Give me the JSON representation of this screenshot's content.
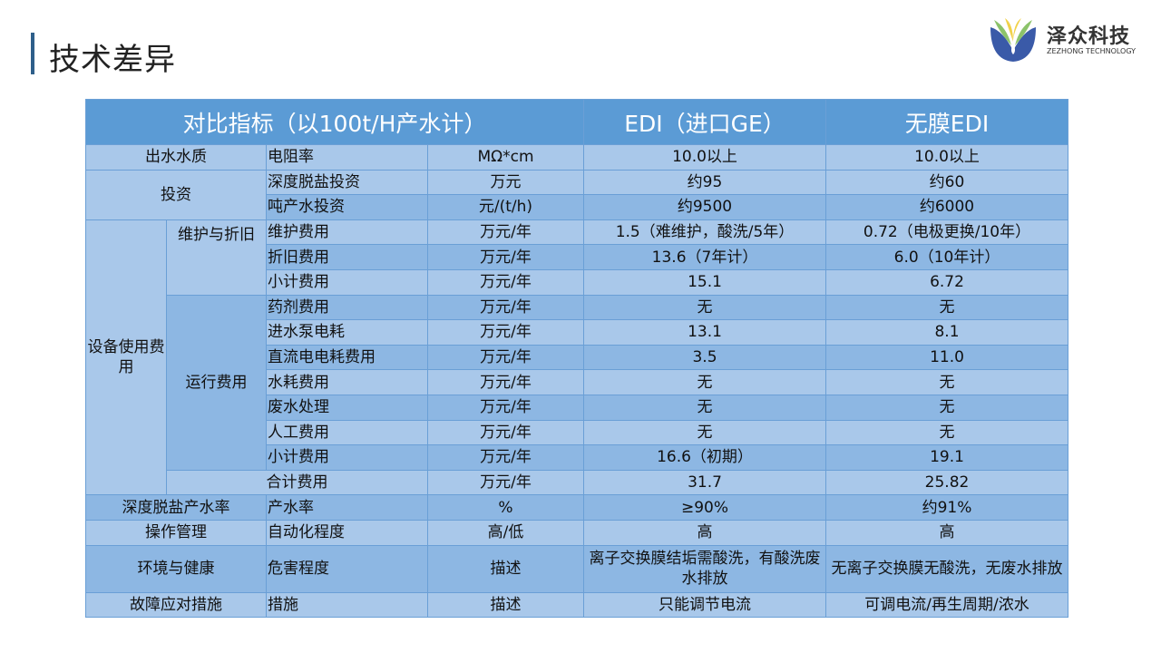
{
  "title": "技术差异",
  "logo": {
    "cn": "泽众科技",
    "en": "ZEZHONG TECHNOLOGY"
  },
  "colors": {
    "header": "#5b9bd5",
    "row_light": "#a9c8ea",
    "row_dark": "#8db7e3",
    "accent_bar": "#2e5f8a"
  },
  "header": {
    "col1": "对比指标（以100t/H产水计）",
    "col2": "EDI（进口GE）",
    "col3": "无膜EDI"
  },
  "groups": {
    "water": "出水水质",
    "invest": "投资",
    "equip": "设备使用费用",
    "maint": "维护与折旧",
    "run": "运行费用",
    "rate": "深度脱盐产水率",
    "ops": "操作管理",
    "env": "环境与健康",
    "fault": "故障应对措施"
  },
  "rows": [
    {
      "item": "电阻率",
      "unit": "MΩ*cm",
      "edi": "10.0以上",
      "nm": "10.0以上"
    },
    {
      "item": "深度脱盐投资",
      "unit": "万元",
      "edi": "约95",
      "nm": "约60"
    },
    {
      "item": "吨产水投资",
      "unit": "元/(t/h)",
      "edi": "约9500",
      "nm": "约6000"
    },
    {
      "item": "维护费用",
      "unit": "万元/年",
      "edi": "1.5（难维护，酸洗/5年）",
      "nm": "0.72（电极更换/10年）"
    },
    {
      "item": "折旧费用",
      "unit": "万元/年",
      "edi": "13.6（7年计）",
      "nm": "6.0（10年计）"
    },
    {
      "item": "小计费用",
      "unit": "万元/年",
      "edi": "15.1",
      "nm": "6.72"
    },
    {
      "item": "药剂费用",
      "unit": "万元/年",
      "edi": "无",
      "nm": "无"
    },
    {
      "item": "进水泵电耗",
      "unit": "万元/年",
      "edi": "13.1",
      "nm": "8.1"
    },
    {
      "item": "直流电电耗费用",
      "unit": "万元/年",
      "edi": "3.5",
      "nm": "11.0"
    },
    {
      "item": "水耗费用",
      "unit": "万元/年",
      "edi": "无",
      "nm": "无"
    },
    {
      "item": "废水处理",
      "unit": "万元/年",
      "edi": "无",
      "nm": "无"
    },
    {
      "item": "人工费用",
      "unit": "万元/年",
      "edi": "无",
      "nm": "无"
    },
    {
      "item": "小计费用",
      "unit": "万元/年",
      "edi": "16.6（初期）",
      "nm": "19.1"
    },
    {
      "item": "合计费用",
      "unit": "万元/年",
      "edi": "31.7",
      "nm": "25.82"
    },
    {
      "item": "产水率",
      "unit": "%",
      "edi": "≥90%",
      "nm": "约91%"
    },
    {
      "item": "自动化程度",
      "unit": "高/低",
      "edi": "高",
      "nm": "高"
    },
    {
      "item": "危害程度",
      "unit": "描述",
      "edi": "离子交换膜结垢需酸洗，有酸洗废水排放",
      "nm": "无离子交换膜无酸洗，无废水排放"
    },
    {
      "item": "措施",
      "unit": "描述",
      "edi": "只能调节电流",
      "nm": "可调电流/再生周期/浓水"
    }
  ]
}
